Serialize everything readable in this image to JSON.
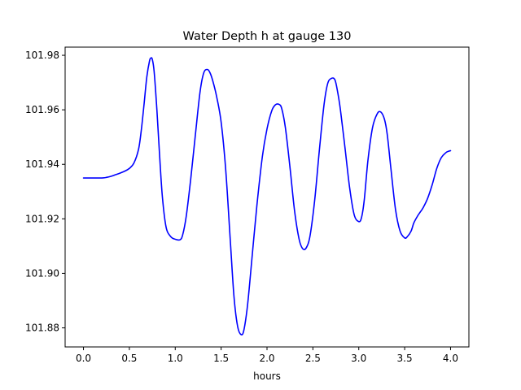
{
  "chart_data": {
    "type": "line",
    "title": "Water Depth h at gauge 130",
    "xlabel": "hours",
    "ylabel": "",
    "xlim": [
      -0.2,
      4.2
    ],
    "ylim": [
      101.873,
      101.983
    ],
    "xticks": [
      0.0,
      0.5,
      1.0,
      1.5,
      2.0,
      2.5,
      3.0,
      3.5,
      4.0
    ],
    "xtick_labels": [
      "0.0",
      "0.5",
      "1.0",
      "1.5",
      "2.0",
      "2.5",
      "3.0",
      "3.5",
      "4.0"
    ],
    "yticks": [
      101.88,
      101.9,
      101.92,
      101.94,
      101.96,
      101.98
    ],
    "ytick_labels": [
      "101.88",
      "101.90",
      "101.92",
      "101.94",
      "101.96",
      "101.98"
    ],
    "grid": false,
    "color": "#0000ff",
    "series": [
      {
        "x": [
          0.0,
          0.1,
          0.2,
          0.25,
          0.3,
          0.35,
          0.4,
          0.45,
          0.5,
          0.55,
          0.6,
          0.63,
          0.66,
          0.69,
          0.72,
          0.735,
          0.75,
          0.77,
          0.8,
          0.83,
          0.86,
          0.9,
          0.95,
          1.0,
          1.05,
          1.08,
          1.12,
          1.17,
          1.22,
          1.27,
          1.31,
          1.35,
          1.38,
          1.41,
          1.45,
          1.5,
          1.55,
          1.6,
          1.64,
          1.68,
          1.72,
          1.75,
          1.79,
          1.84,
          1.89,
          1.95,
          2.0,
          2.05,
          2.09,
          2.13,
          2.16,
          2.2,
          2.25,
          2.3,
          2.35,
          2.39,
          2.43,
          2.47,
          2.52,
          2.57,
          2.62,
          2.66,
          2.7,
          2.74,
          2.77,
          2.8,
          2.85,
          2.9,
          2.95,
          3.0,
          3.03,
          3.06,
          3.1,
          3.15,
          3.2,
          3.24,
          3.28,
          3.31,
          3.35,
          3.4,
          3.45,
          3.5,
          3.53,
          3.57,
          3.6,
          3.64,
          3.67,
          3.7,
          3.75,
          3.8,
          3.85,
          3.9,
          3.95,
          3.98,
          4.0
        ],
        "y": [
          101.935,
          101.935,
          101.935,
          101.9352,
          101.9356,
          101.9362,
          101.9368,
          101.9375,
          101.9385,
          101.9405,
          101.9455,
          101.9525,
          101.962,
          101.972,
          101.978,
          101.979,
          101.9785,
          101.974,
          101.96,
          101.943,
          101.928,
          101.917,
          101.9135,
          101.9125,
          101.9123,
          101.914,
          101.921,
          101.935,
          101.951,
          101.9665,
          101.9735,
          101.9748,
          101.9735,
          101.9705,
          101.965,
          101.9555,
          101.938,
          101.912,
          101.8915,
          101.8805,
          101.8775,
          101.8795,
          101.889,
          101.907,
          101.925,
          101.943,
          101.953,
          101.9595,
          101.9618,
          101.962,
          101.9605,
          101.9535,
          101.939,
          101.923,
          101.9125,
          101.909,
          101.9095,
          101.914,
          101.927,
          101.945,
          101.9615,
          101.9695,
          101.9715,
          101.971,
          101.9665,
          101.96,
          101.946,
          101.9315,
          101.9215,
          101.919,
          101.9205,
          101.927,
          101.9415,
          101.9535,
          101.9585,
          101.9592,
          101.9565,
          101.951,
          101.9385,
          101.9235,
          101.9155,
          101.913,
          101.9135,
          101.9155,
          101.9185,
          101.921,
          101.9225,
          101.924,
          101.9275,
          101.9325,
          101.9385,
          101.9425,
          101.9443,
          101.9448,
          101.945
        ]
      }
    ]
  }
}
